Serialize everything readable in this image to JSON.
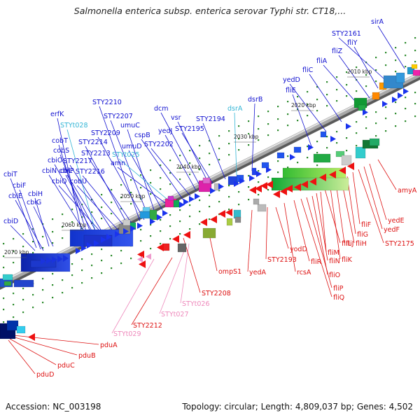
{
  "title": "Salmonella enterica subsp. enterica serovar Typhi str. CT18,...",
  "footer": {
    "accession": "Accession: NC_003198",
    "genome_info": "Topology: circular; Length: 4,809,037 bp; Genes: 4,502"
  },
  "colors": {
    "forward_label": "#1010d0",
    "forward_trna_label": "#33b5d5",
    "reverse_label": "#dd1111",
    "reverse_trna_label": "#ee88bb",
    "backbone": "#909090"
  },
  "ticks": [
    "2010 kbp",
    "2020 kbp",
    "2030 kbp",
    "2040 kbp",
    "2050 kbp",
    "2060 kbp",
    "2070 kbp"
  ],
  "upper_labels": [
    {
      "text": "cbiT",
      "kind": "forward"
    },
    {
      "text": "cbiF",
      "kind": "forward"
    },
    {
      "text": "cbiE",
      "kind": "forward"
    },
    {
      "text": "cbiH",
      "kind": "forward"
    },
    {
      "text": "cbiG",
      "kind": "forward"
    },
    {
      "text": "cbiD",
      "kind": "forward"
    },
    {
      "text": "erfK",
      "kind": "forward"
    },
    {
      "text": "STYt028",
      "kind": "trna"
    },
    {
      "text": "cobT",
      "kind": "forward"
    },
    {
      "text": "cobS",
      "kind": "forward"
    },
    {
      "text": "cbiO",
      "kind": "forward"
    },
    {
      "text": "cbiN",
      "kind": "forward"
    },
    {
      "text": "cbiL",
      "kind": "forward"
    },
    {
      "text": "cbiP",
      "kind": "forward"
    },
    {
      "text": "cbiQ",
      "kind": "forward"
    },
    {
      "text": "STY2217",
      "kind": "forward"
    },
    {
      "text": "cobU",
      "kind": "forward"
    },
    {
      "text": "STY2216",
      "kind": "forward"
    },
    {
      "text": "STY2214",
      "kind": "forward"
    },
    {
      "text": "STY2213",
      "kind": "forward"
    },
    {
      "text": "STY2210",
      "kind": "forward"
    },
    {
      "text": "STY2209",
      "kind": "forward"
    },
    {
      "text": "STY2207",
      "kind": "forward"
    },
    {
      "text": "umuC",
      "kind": "forward"
    },
    {
      "text": "umuD",
      "kind": "forward"
    },
    {
      "text": "STYt025",
      "kind": "trna"
    },
    {
      "text": "amn",
      "kind": "forward"
    },
    {
      "text": "cspB",
      "kind": "forward"
    },
    {
      "text": "STY2202",
      "kind": "forward"
    },
    {
      "text": "dcm",
      "kind": "forward"
    },
    {
      "text": "vsr",
      "kind": "forward"
    },
    {
      "text": "yedJ",
      "kind": "forward"
    },
    {
      "text": "STY2195",
      "kind": "forward"
    },
    {
      "text": "STY2194",
      "kind": "forward"
    },
    {
      "text": "dsrA",
      "kind": "trna"
    },
    {
      "text": "dsrB",
      "kind": "forward"
    },
    {
      "text": "fliE",
      "kind": "forward"
    },
    {
      "text": "yedD",
      "kind": "forward"
    },
    {
      "text": "fliC",
      "kind": "forward"
    },
    {
      "text": "fliA",
      "kind": "forward"
    },
    {
      "text": "fliZ",
      "kind": "forward"
    },
    {
      "text": "fliY",
      "kind": "forward"
    },
    {
      "text": "STY2161",
      "kind": "forward"
    },
    {
      "text": "sirA",
      "kind": "forward"
    }
  ],
  "lower_labels": [
    {
      "text": "pduA",
      "kind": "reverse"
    },
    {
      "text": "pduB",
      "kind": "reverse"
    },
    {
      "text": "pduC",
      "kind": "reverse"
    },
    {
      "text": "pduD",
      "kind": "reverse"
    },
    {
      "text": "STYt029",
      "kind": "trna"
    },
    {
      "text": "STY2212",
      "kind": "reverse"
    },
    {
      "text": "STYt027",
      "kind": "trna"
    },
    {
      "text": "STYt026",
      "kind": "trna"
    },
    {
      "text": "STY2208",
      "kind": "reverse"
    },
    {
      "text": "ompS1",
      "kind": "reverse"
    },
    {
      "text": "yedA",
      "kind": "reverse"
    },
    {
      "text": "STY2193",
      "kind": "reverse"
    },
    {
      "text": "yodD",
      "kind": "reverse"
    },
    {
      "text": "rcsA",
      "kind": "reverse"
    },
    {
      "text": "fliR",
      "kind": "reverse"
    },
    {
      "text": "fliQ",
      "kind": "reverse"
    },
    {
      "text": "fliP",
      "kind": "reverse"
    },
    {
      "text": "fliO",
      "kind": "reverse"
    },
    {
      "text": "fliN",
      "kind": "reverse"
    },
    {
      "text": "fliM",
      "kind": "reverse"
    },
    {
      "text": "fliL",
      "kind": "reverse"
    },
    {
      "text": "fliK",
      "kind": "reverse"
    },
    {
      "text": "fliJ",
      "kind": "reverse"
    },
    {
      "text": "fliH",
      "kind": "reverse"
    },
    {
      "text": "fliG",
      "kind": "reverse"
    },
    {
      "text": "fliF",
      "kind": "reverse"
    },
    {
      "text": "STY2175",
      "kind": "reverse"
    },
    {
      "text": "yedF",
      "kind": "reverse"
    },
    {
      "text": "yedE",
      "kind": "reverse"
    },
    {
      "text": "amyA",
      "kind": "reverse"
    }
  ]
}
